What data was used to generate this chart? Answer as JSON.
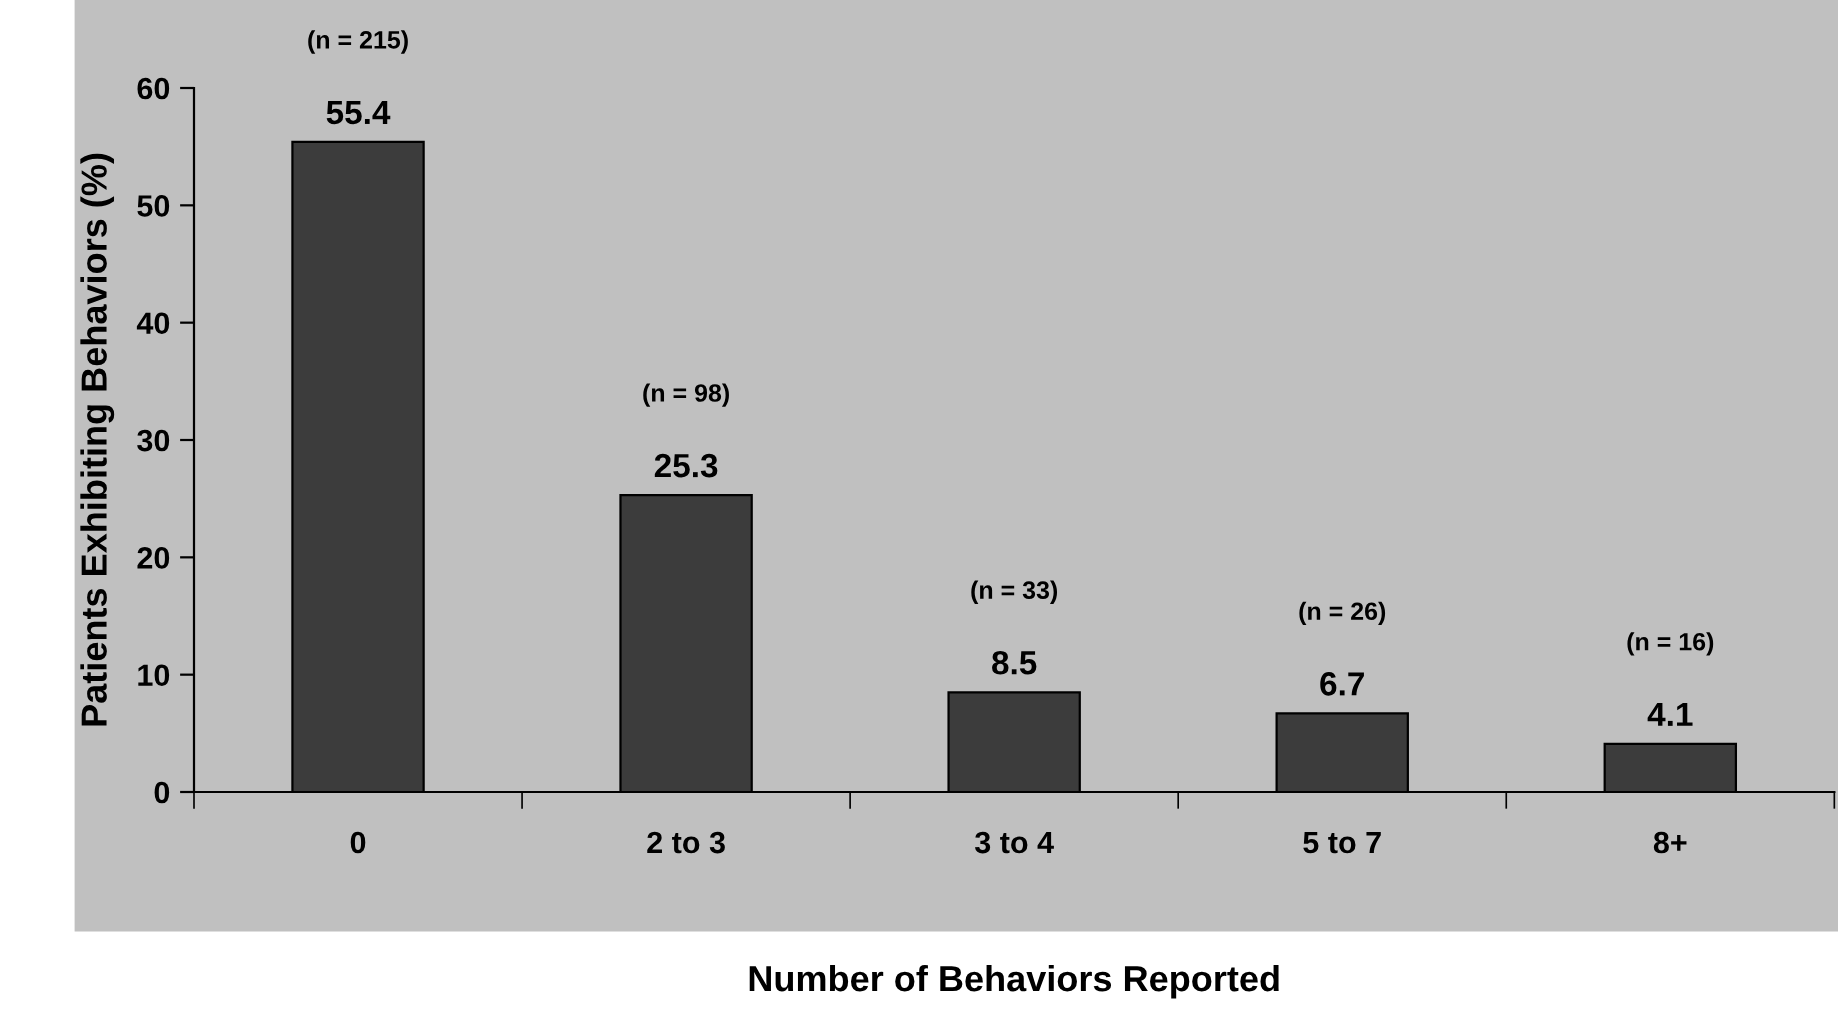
{
  "chart_data": {
    "type": "bar",
    "xlabel": "Number of Behaviors Reported",
    "ylabel": "Patients Exhibiting Behaviors (%)",
    "categories": [
      "0",
      "2 to 3",
      "3 to 4",
      "5 to 7",
      "8+"
    ],
    "values": [
      55.4,
      25.3,
      8.5,
      6.7,
      4.1
    ],
    "color": "#3c3c3c",
    "data_labels": true,
    "ylim": [
      0,
      60
    ],
    "yticks": [
      0,
      10,
      20,
      30,
      40,
      50,
      60
    ],
    "grid": false,
    "legend": false,
    "annotations": [
      "(n = 215)",
      "(n = 98)",
      "(n = 33)",
      "(n = 26)",
      "(n = 16)"
    ]
  }
}
